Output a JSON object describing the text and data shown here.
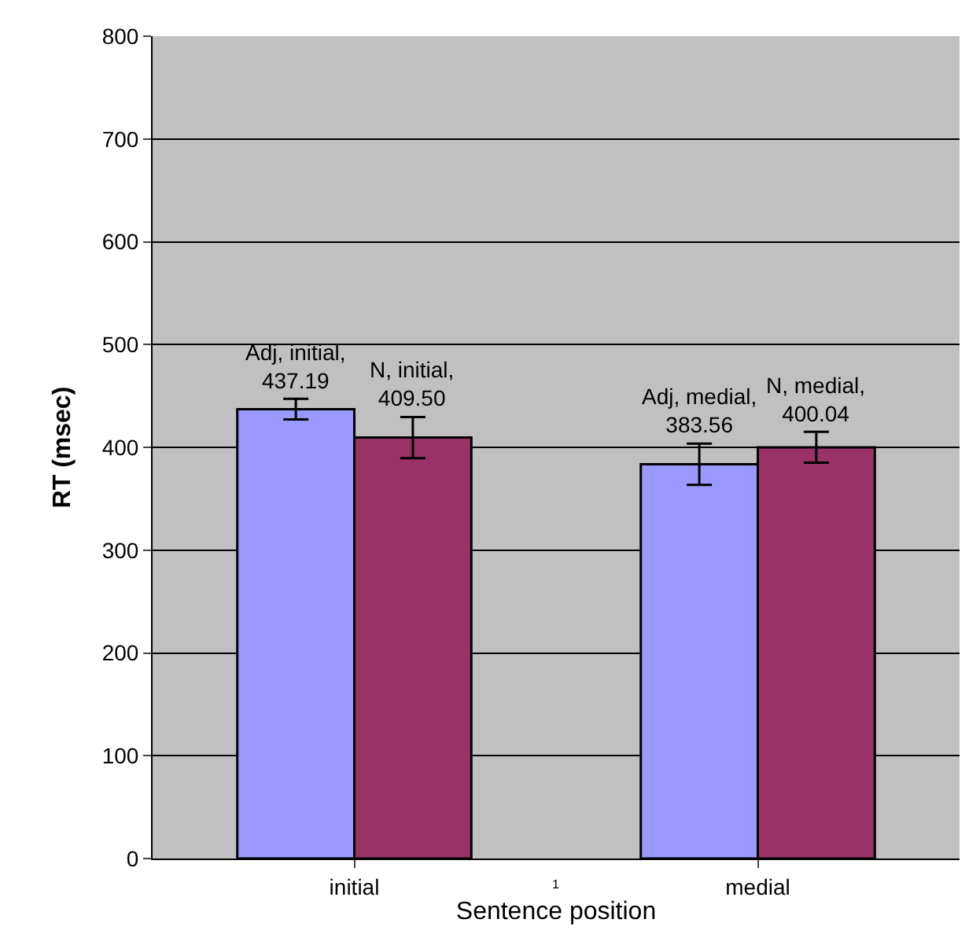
{
  "chart_data": {
    "type": "bar",
    "xlabel": "Sentence position",
    "ylabel": "RT (msec)",
    "categories": [
      "initial",
      "medial"
    ],
    "series": [
      {
        "color": "#9999ff",
        "values": [
          437.19,
          383.56
        ],
        "errors": [
          10,
          20
        ],
        "value_labels": [
          "Adj, initial, 437.19",
          "Adj, medial, 383.56"
        ]
      },
      {
        "color": "#993366",
        "values": [
          409.5,
          400.04
        ],
        "errors": [
          20,
          15
        ],
        "value_labels": [
          "N, initial, 409.50",
          "N, medial, 400.04"
        ]
      }
    ],
    "ylim": [
      0,
      800
    ],
    "yticks": [
      0,
      100,
      200,
      300,
      400,
      500,
      600,
      700,
      800
    ],
    "grid": "y",
    "legend": false,
    "annotations": [
      "1"
    ]
  }
}
